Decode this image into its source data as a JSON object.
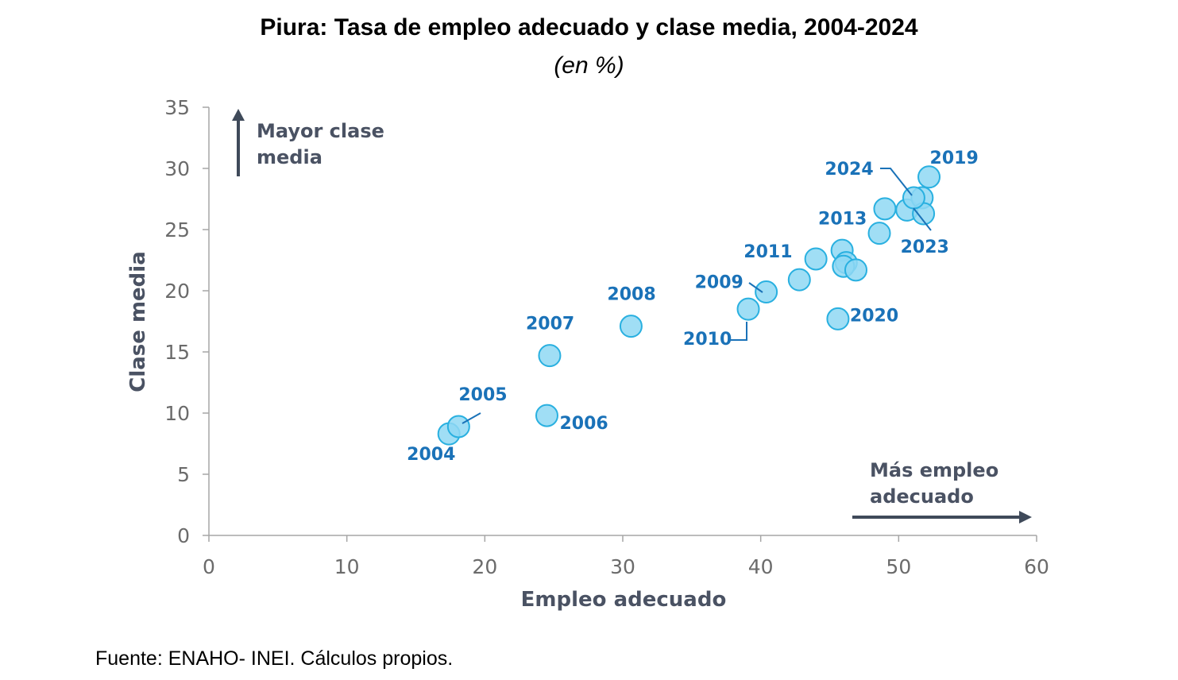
{
  "chart_data": {
    "type": "scatter",
    "title": "Piura: Tasa de empleo adecuado y clase media, 2004-2024",
    "subtitle": "(en %)",
    "xlabel": "Empleo adecuado",
    "ylabel": "Clase media",
    "xlim": [
      0,
      60
    ],
    "ylim": [
      0,
      35
    ],
    "xticks": [
      "0",
      "10",
      "20",
      "30",
      "40",
      "50",
      "60"
    ],
    "yticks": [
      "0",
      "5",
      "10",
      "15",
      "20",
      "25",
      "30",
      "35"
    ],
    "grid": false,
    "annotations": {
      "y_arrow": "Mayor clase media",
      "x_arrow": "Más empleo adecuado"
    },
    "points": [
      {
        "label": "2004",
        "x": 17.4,
        "y": 8.3
      },
      {
        "label": "2005",
        "x": 18.1,
        "y": 8.9
      },
      {
        "label": "2006",
        "x": 24.5,
        "y": 9.8
      },
      {
        "label": "2007",
        "x": 24.7,
        "y": 14.7
      },
      {
        "label": "2008",
        "x": 30.6,
        "y": 17.1
      },
      {
        "label": "2009",
        "x": 40.4,
        "y": 19.9
      },
      {
        "label": "2010",
        "x": 39.1,
        "y": 18.5
      },
      {
        "label": "2011",
        "x": 42.8,
        "y": 20.9
      },
      {
        "label": "",
        "x": 44.0,
        "y": 22.6
      },
      {
        "label": "",
        "x": 45.9,
        "y": 23.3
      },
      {
        "label": "",
        "x": 46.2,
        "y": 22.3
      },
      {
        "label": "",
        "x": 46.0,
        "y": 22.0
      },
      {
        "label": "",
        "x": 46.9,
        "y": 21.7
      },
      {
        "label": "2013",
        "x": 48.6,
        "y": 24.7
      },
      {
        "label": "",
        "x": 49.0,
        "y": 26.7
      },
      {
        "label": "",
        "x": 50.6,
        "y": 26.6
      },
      {
        "label": "2019",
        "x": 52.2,
        "y": 29.3
      },
      {
        "label": "2020",
        "x": 45.6,
        "y": 17.7
      },
      {
        "label": "",
        "x": 51.7,
        "y": 27.6
      },
      {
        "label": "2023",
        "x": 51.8,
        "y": 26.3
      },
      {
        "label": "2024",
        "x": 51.1,
        "y": 27.6
      }
    ],
    "colors": {
      "marker_fill": "#8fd8f3",
      "marker_stroke": "#29b0e0",
      "label": "#1a72b8",
      "axis_text": "#4a5263"
    }
  },
  "source": "Fuente: ENAHO- INEI. Cálculos propios."
}
